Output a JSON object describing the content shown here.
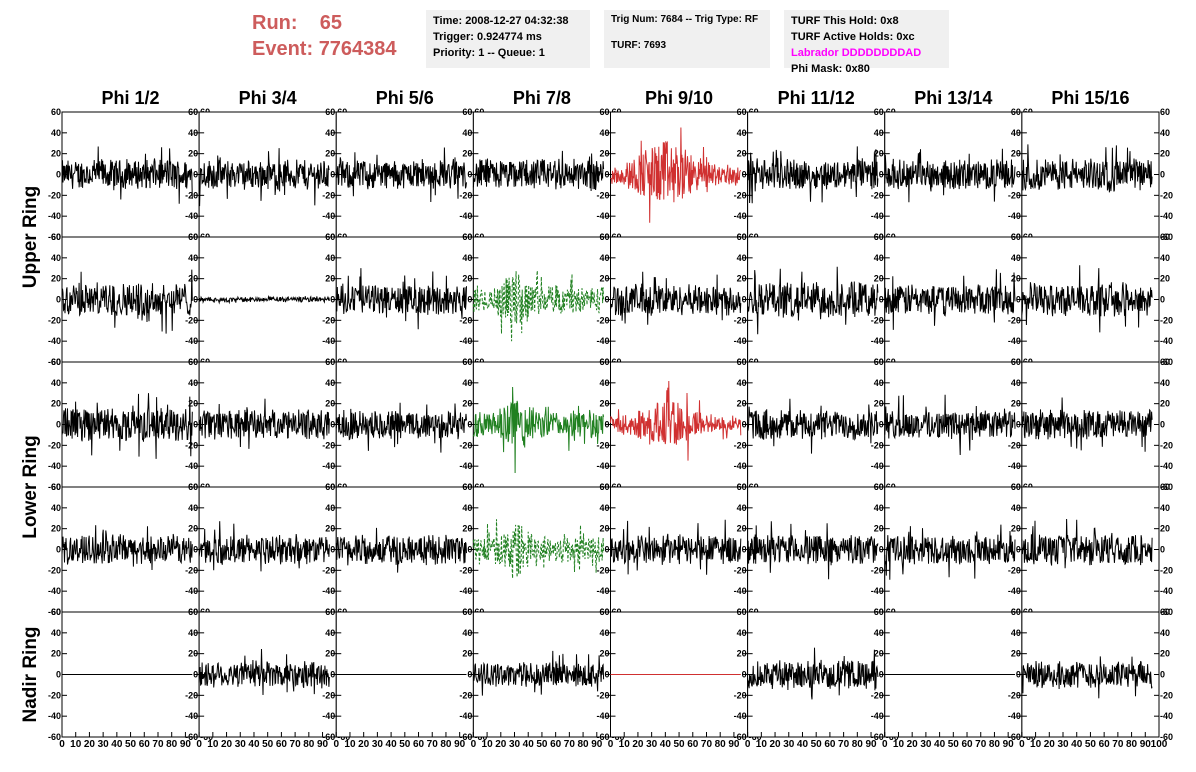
{
  "header": {
    "run_label": "Run:",
    "run_value": "65",
    "event_label": "Event:",
    "event_value": "7764384",
    "time": "Time: 2008-12-27 04:32:38",
    "trigger": "Trigger: 0.924774 ms",
    "priority": "Priority: 1 -- Queue: 1",
    "trig_num": "Trig Num: 7684 -- Trig Type: RF",
    "turf": "TURF: 7693",
    "turf_hold": "TURF This Hold: 0x8",
    "turf_active": "TURF Active Holds: 0xc",
    "labrador": "Labrador DDDDDDDDAD",
    "phi_mask": "Phi Mask: 0x80"
  },
  "colors": {
    "normal": "#000000",
    "triggered": "#d03030",
    "masked": "#208020",
    "title_red": "#cd5c5c",
    "labrador": "#ff00ff"
  },
  "chart_data": {
    "type": "line",
    "columns": [
      "Phi 1/2",
      "Phi 3/4",
      "Phi 5/6",
      "Phi 7/8",
      "Phi 9/10",
      "Phi 11/12",
      "Phi 13/14",
      "Phi 15/16"
    ],
    "row_groups": [
      {
        "label": "Upper Ring",
        "rows": [
          0,
          1
        ]
      },
      {
        "label": "Lower Ring",
        "rows": [
          2,
          3
        ]
      },
      {
        "label": "Nadir Ring",
        "rows": [
          4
        ]
      }
    ],
    "ylim": [
      -60,
      60
    ],
    "yticks": [
      -60,
      -40,
      -20,
      0,
      20,
      40,
      60
    ],
    "xlim": [
      0,
      100
    ],
    "xticks": [
      0,
      10,
      20,
      30,
      40,
      50,
      60,
      70,
      80,
      90,
      100
    ],
    "x_trace_range": [
      0,
      95
    ],
    "rows": [
      [
        {
          "amplitude": 13,
          "style": "normal"
        },
        {
          "amplitude": 13,
          "style": "normal"
        },
        {
          "amplitude": 13,
          "style": "normal"
        },
        {
          "amplitude": 14,
          "style": "normal"
        },
        {
          "amplitude": 25,
          "style": "triggered"
        },
        {
          "amplitude": 13,
          "style": "normal"
        },
        {
          "amplitude": 13,
          "style": "normal"
        },
        {
          "amplitude": 14,
          "style": "normal"
        }
      ],
      [
        {
          "amplitude": 15,
          "style": "normal"
        },
        {
          "amplitude": 1.5,
          "style": "normal"
        },
        {
          "amplitude": 13,
          "style": "normal"
        },
        {
          "amplitude": 20,
          "style": "masked-dotted"
        },
        {
          "amplitude": 14,
          "style": "normal"
        },
        {
          "amplitude": 16,
          "style": "normal"
        },
        {
          "amplitude": 14,
          "style": "normal"
        },
        {
          "amplitude": 15,
          "style": "normal"
        }
      ],
      [
        {
          "amplitude": 15,
          "style": "normal"
        },
        {
          "amplitude": 13,
          "style": "normal"
        },
        {
          "amplitude": 13,
          "style": "normal"
        },
        {
          "amplitude": 20,
          "style": "masked"
        },
        {
          "amplitude": 18,
          "style": "triggered"
        },
        {
          "amplitude": 13,
          "style": "normal"
        },
        {
          "amplitude": 13,
          "style": "normal"
        },
        {
          "amplitude": 13,
          "style": "normal"
        }
      ],
      [
        {
          "amplitude": 13,
          "style": "normal"
        },
        {
          "amplitude": 13,
          "style": "normal"
        },
        {
          "amplitude": 13,
          "style": "normal"
        },
        {
          "amplitude": 20,
          "style": "masked-dotted"
        },
        {
          "amplitude": 13,
          "style": "normal"
        },
        {
          "amplitude": 13,
          "style": "normal"
        },
        {
          "amplitude": 13,
          "style": "normal"
        },
        {
          "amplitude": 14,
          "style": "normal"
        }
      ],
      [
        {
          "amplitude": 0,
          "style": "normal"
        },
        {
          "amplitude": 12,
          "style": "normal"
        },
        {
          "amplitude": 0,
          "style": "normal"
        },
        {
          "amplitude": 11,
          "style": "normal"
        },
        {
          "amplitude": 0,
          "style": "triggered"
        },
        {
          "amplitude": 13,
          "style": "normal"
        },
        {
          "amplitude": 0,
          "style": "normal"
        },
        {
          "amplitude": 12,
          "style": "normal"
        }
      ]
    ]
  }
}
